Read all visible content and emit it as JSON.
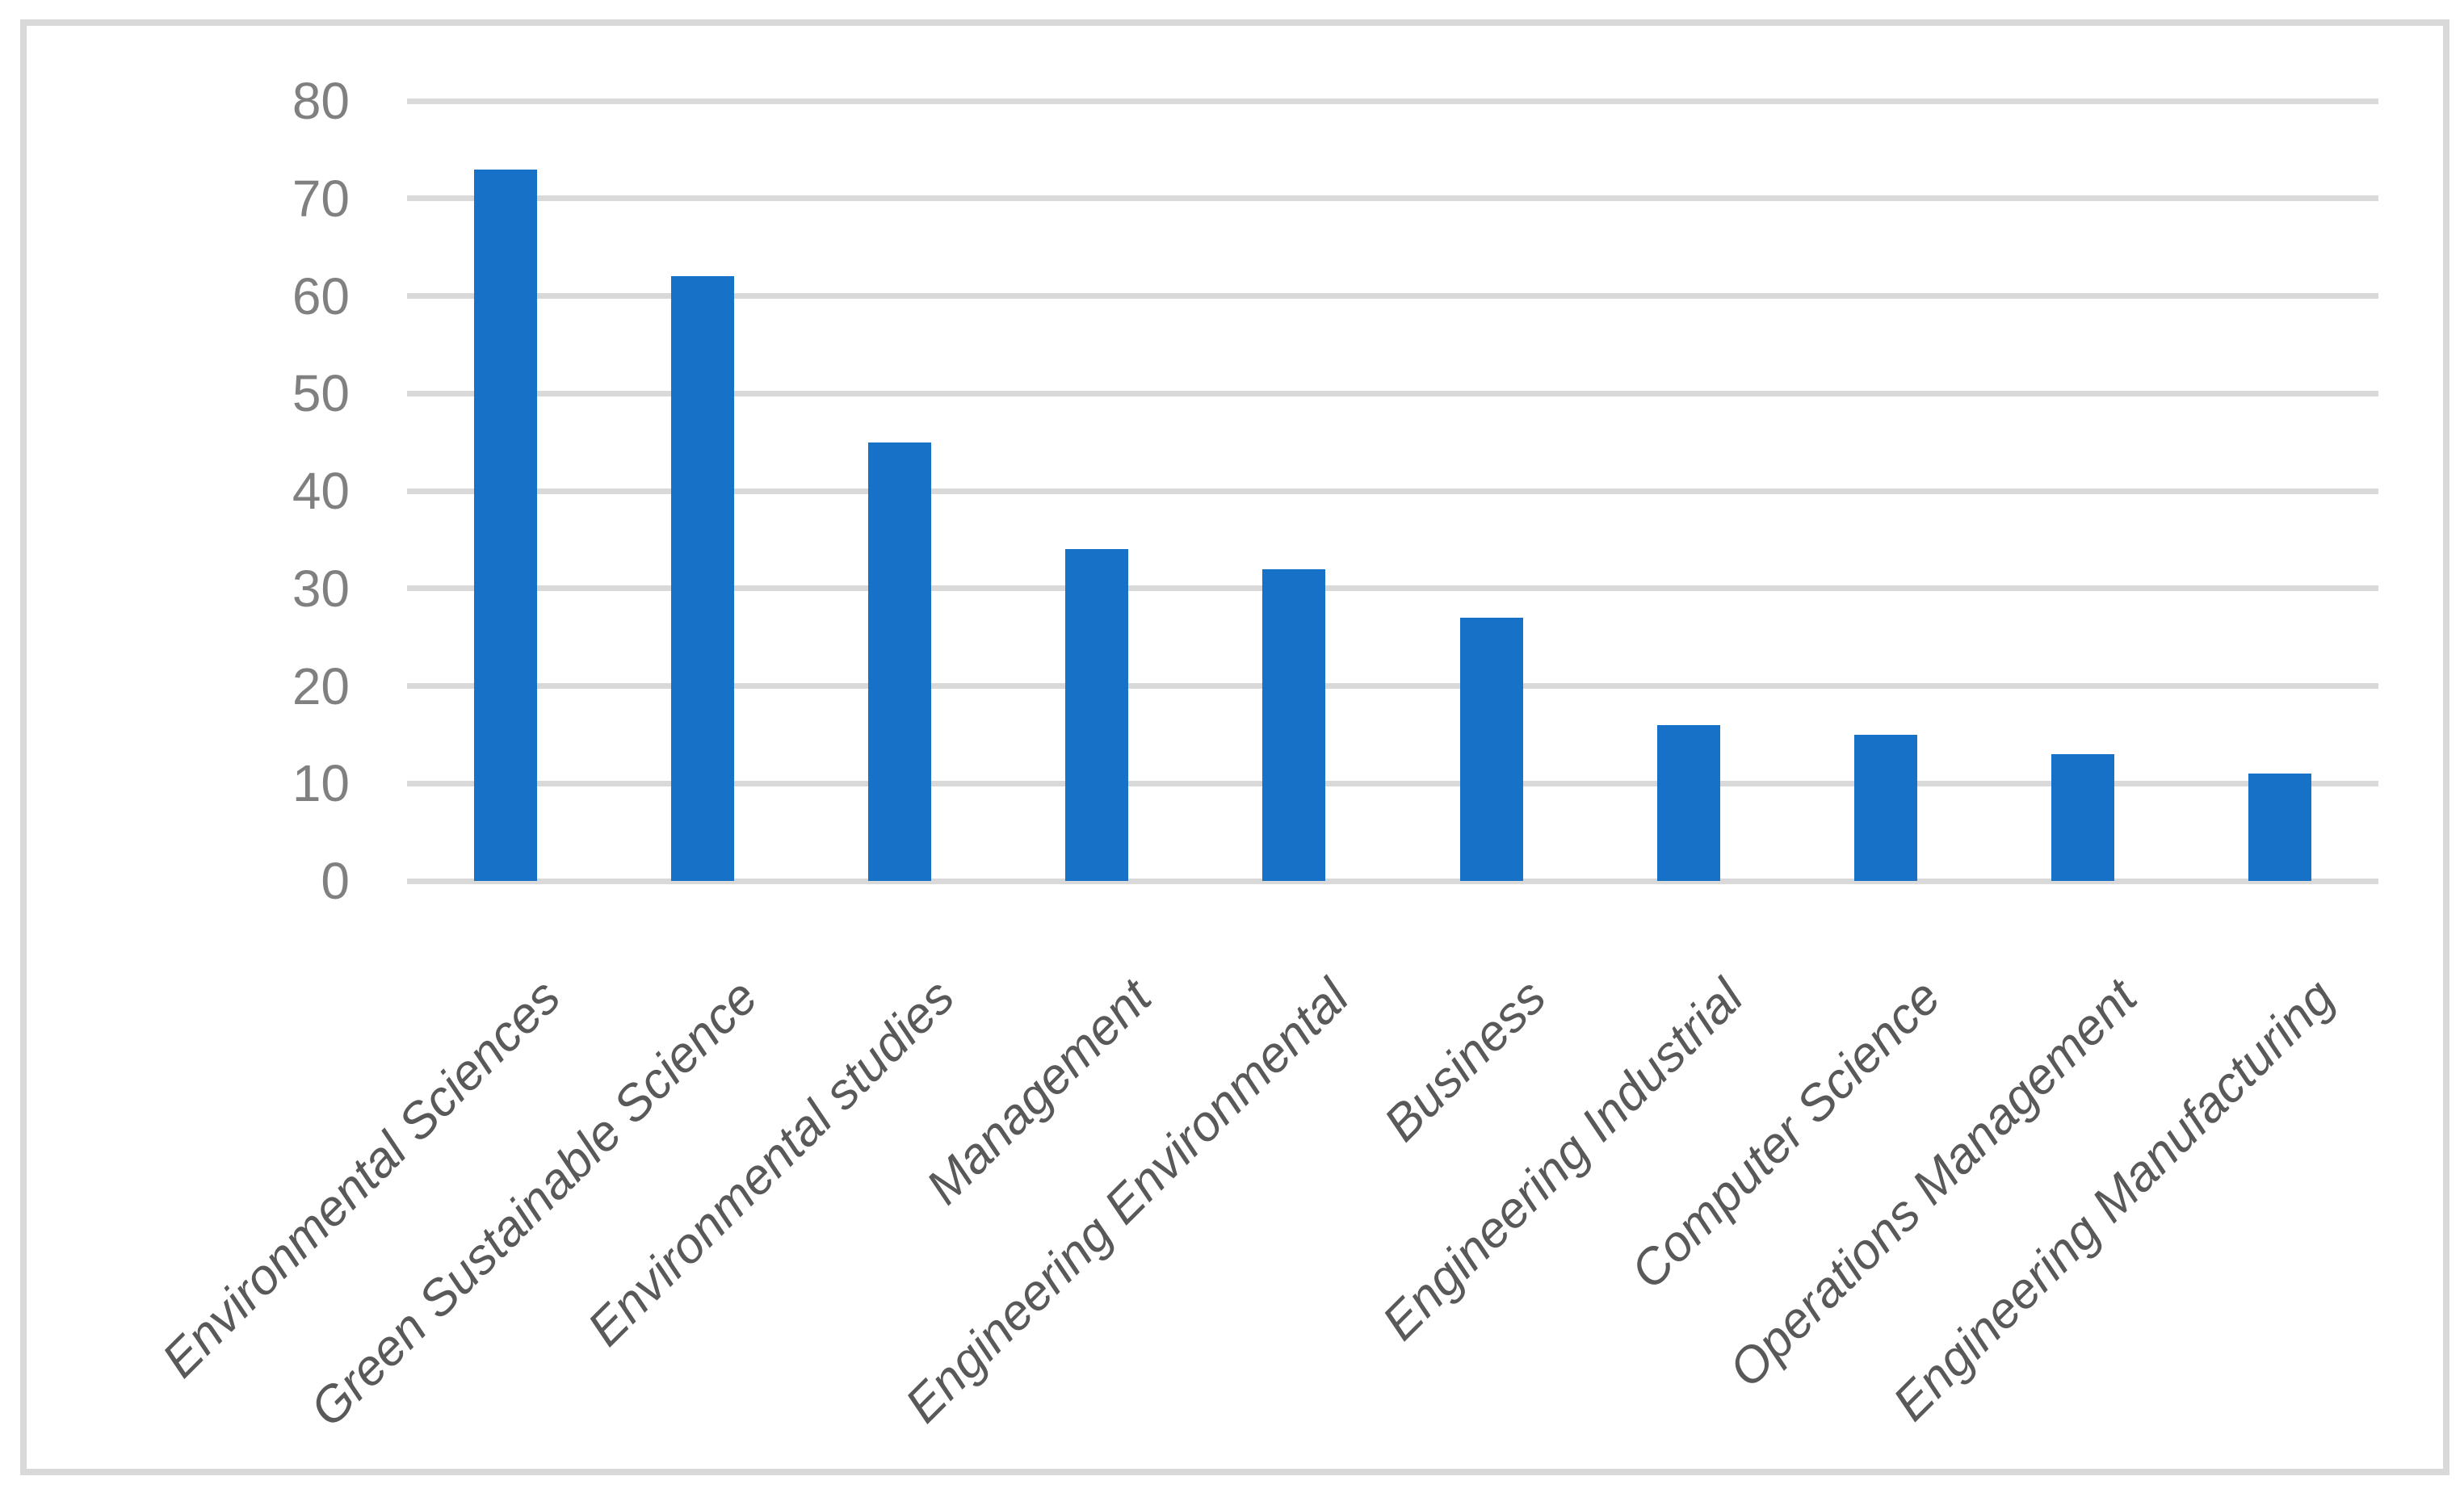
{
  "chart_data": {
    "type": "bar",
    "title": "",
    "xlabel": "",
    "ylabel": "",
    "categories": [
      "Environmental Sciences",
      "Green Sustainable Science",
      "Environmental studies",
      "Management",
      "Engineering Environmental",
      "Business",
      "Engineering Industrial",
      "Computer Science",
      "Operations Management",
      "Engineering Manufacturing"
    ],
    "values": [
      73,
      62,
      45,
      34,
      32,
      27,
      16,
      15,
      13,
      11
    ],
    "ylim": [
      0,
      80
    ],
    "ytick_step": 10,
    "ytick_labels": [
      "0",
      "10",
      "20",
      "30",
      "40",
      "50",
      "60",
      "70",
      "80"
    ],
    "grid": true,
    "legend": false,
    "colors": {
      "bar": "#1772C7",
      "gridline": "#D9D9D9",
      "frame_border": "#D9D9D9",
      "ytick_label": "#808080",
      "category_label": "#595959",
      "background": "#FFFFFF"
    }
  }
}
